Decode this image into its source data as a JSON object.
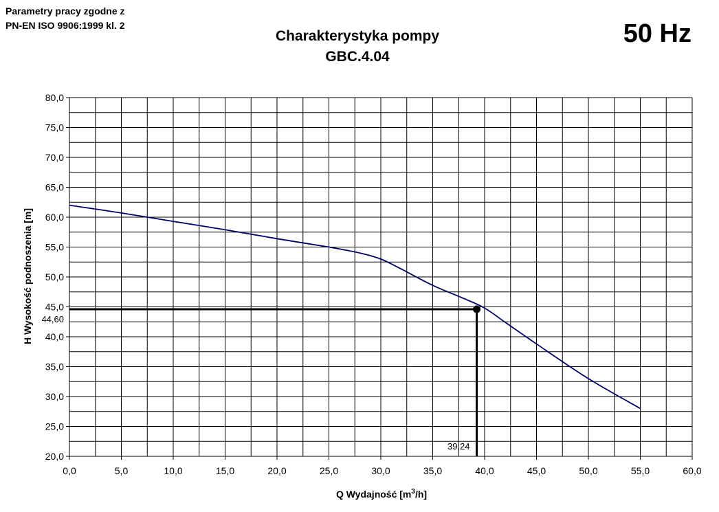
{
  "header": {
    "note_line1": "Parametry pracy zgodne z",
    "note_line2": "PN-EN ISO 9906:1999 kl. 2",
    "title_line1": "Charakterystyka pompy",
    "title_line2": "GBC.4.04",
    "frequency": "50 Hz"
  },
  "chart_data": {
    "type": "line",
    "xlabel_main": "Q Wydajność [m",
    "xlabel_sup": "3",
    "xlabel_tail": "/h]",
    "ylabel": "H  Wysokość podnoszenia [m]",
    "xlim": [
      0,
      60
    ],
    "ylim": [
      20,
      80
    ],
    "x_ticks": [
      "0,0",
      "5,0",
      "10,0",
      "15,0",
      "20,0",
      "25,0",
      "30,0",
      "35,0",
      "40,0",
      "45,0",
      "50,0",
      "55,0",
      "60,0"
    ],
    "y_ticks": [
      "20,0",
      "25,0",
      "30,0",
      "35,0",
      "40,0",
      "45,0",
      "50,0",
      "55,0",
      "60,0",
      "65,0",
      "70,0",
      "75,0",
      "80,0"
    ],
    "grid": true,
    "line_color": "#000066",
    "series": [
      {
        "x": [
          0,
          5,
          10,
          15,
          20,
          25,
          28,
          30,
          32,
          35,
          38,
          40,
          42,
          45,
          50,
          55
        ],
        "y": [
          62.0,
          60.7,
          59.3,
          57.9,
          56.4,
          55.0,
          54.0,
          53.0,
          51.3,
          48.6,
          46.4,
          44.8,
          42.4,
          38.8,
          33.0,
          28.0
        ]
      }
    ],
    "operating_point": {
      "x": 39.24,
      "y": 44.6,
      "x_label": "39,24",
      "y_label": "44,60"
    }
  }
}
